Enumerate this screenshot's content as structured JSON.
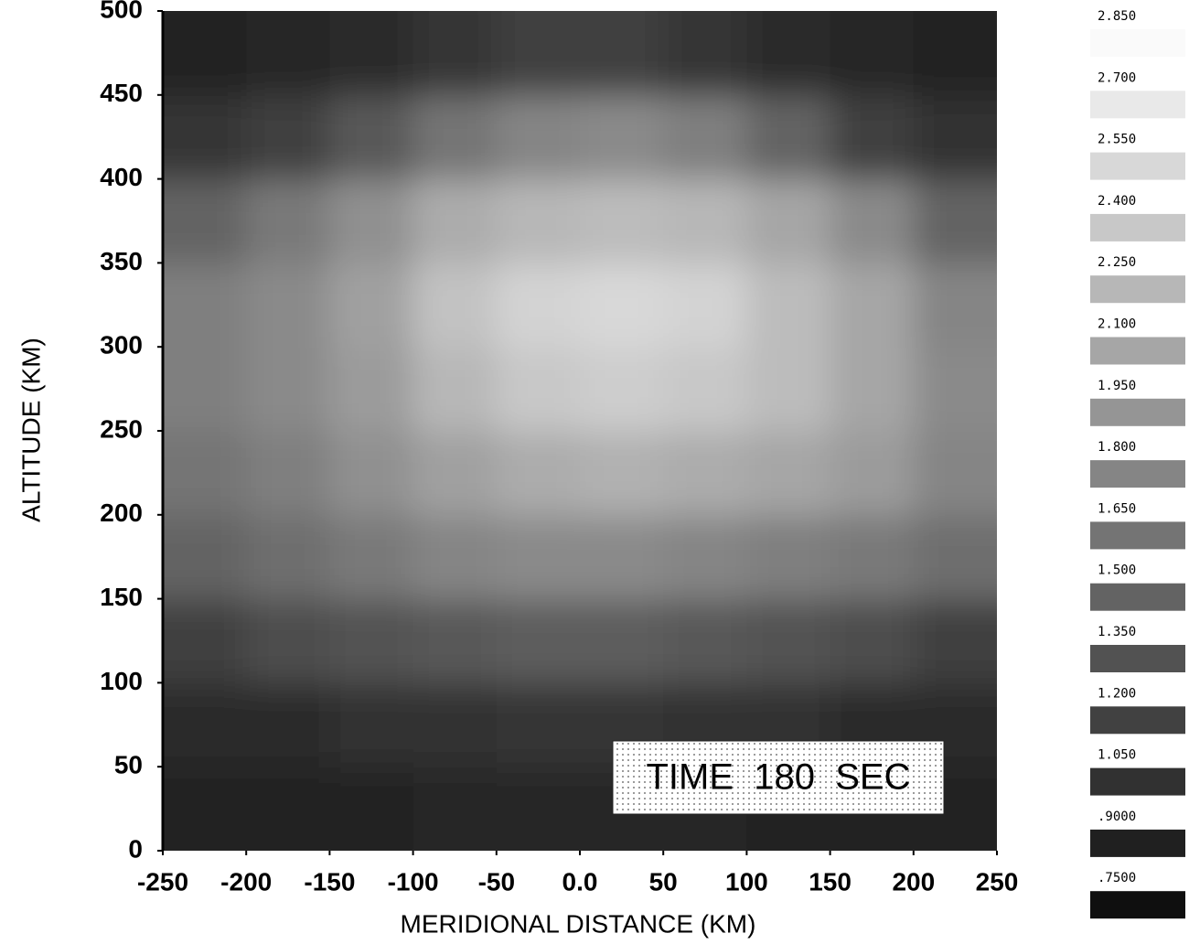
{
  "chart_data": {
    "type": "heatmap",
    "xlabel": "MERIDIONAL DISTANCE (KM)",
    "ylabel": "ALTITUDE (KM)",
    "annotation": "TIME  180  SEC",
    "xlim": [
      -250,
      250
    ],
    "ylim": [
      0,
      500
    ],
    "xticks": [
      -250,
      -200,
      -150,
      -100,
      -50,
      {
        "value": 0,
        "label": "0.0"
      },
      50,
      100,
      150,
      200,
      250
    ],
    "yticks": [
      0,
      50,
      100,
      150,
      200,
      250,
      300,
      350,
      400,
      450,
      500
    ],
    "x": [
      -225,
      -175,
      -125,
      -75,
      -25,
      25,
      75,
      125,
      175,
      225
    ],
    "y": [
      25,
      75,
      125,
      175,
      225,
      275,
      325,
      375,
      425,
      475
    ],
    "z": [
      [
        0.9,
        0.9,
        0.9,
        0.95,
        0.95,
        0.95,
        0.95,
        0.9,
        0.9,
        0.9
      ],
      [
        1.0,
        1.0,
        1.05,
        1.05,
        1.1,
        1.1,
        1.05,
        1.05,
        1.0,
        1.0
      ],
      [
        1.2,
        1.3,
        1.35,
        1.4,
        1.45,
        1.45,
        1.4,
        1.35,
        1.3,
        1.2
      ],
      [
        1.5,
        1.6,
        1.7,
        1.8,
        1.85,
        1.85,
        1.8,
        1.75,
        1.7,
        1.6
      ],
      [
        1.65,
        1.75,
        1.9,
        2.05,
        2.15,
        2.2,
        2.15,
        2.1,
        2.0,
        1.8
      ],
      [
        1.75,
        1.85,
        2.0,
        2.25,
        2.4,
        2.45,
        2.4,
        2.3,
        2.1,
        1.85
      ],
      [
        1.75,
        1.85,
        2.05,
        2.35,
        2.5,
        2.55,
        2.5,
        2.3,
        2.1,
        1.8
      ],
      [
        1.5,
        1.7,
        1.9,
        2.15,
        2.25,
        2.3,
        2.25,
        2.1,
        1.85,
        1.5
      ],
      [
        1.1,
        1.2,
        1.4,
        1.65,
        1.8,
        1.85,
        1.75,
        1.5,
        1.2,
        1.05
      ],
      [
        0.9,
        0.95,
        1.0,
        1.1,
        1.2,
        1.2,
        1.1,
        1.0,
        0.95,
        0.9
      ]
    ],
    "levels": [
      {
        "value": 2.85,
        "label": "2.850"
      },
      {
        "value": 2.7,
        "label": "2.700"
      },
      {
        "value": 2.55,
        "label": "2.550"
      },
      {
        "value": 2.4,
        "label": "2.400"
      },
      {
        "value": 2.25,
        "label": "2.250"
      },
      {
        "value": 2.1,
        "label": "2.100"
      },
      {
        "value": 1.95,
        "label": "1.950"
      },
      {
        "value": 1.8,
        "label": "1.800"
      },
      {
        "value": 1.65,
        "label": "1.650"
      },
      {
        "value": 1.5,
        "label": "1.500"
      },
      {
        "value": 1.35,
        "label": "1.350"
      },
      {
        "value": 1.2,
        "label": "1.200"
      },
      {
        "value": 1.05,
        "label": "1.050"
      },
      {
        "value": 0.9,
        "label": ".9000"
      },
      {
        "value": 0.75,
        "label": ".7500"
      }
    ]
  }
}
